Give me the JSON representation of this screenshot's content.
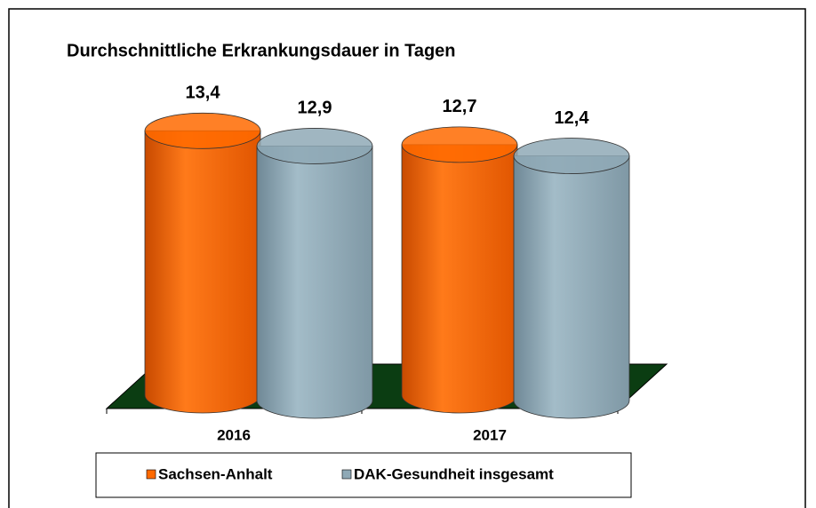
{
  "chart_data": {
    "type": "bar",
    "title": "Durchschnittliche Erkrankungsdauer in Tagen",
    "categories": [
      "2016",
      "2017"
    ],
    "series": [
      {
        "name": "Sachsen-Anhalt",
        "color": "#ff6a00",
        "values": [
          13.4,
          12.7
        ],
        "value_labels": [
          "13,4",
          "12,7"
        ]
      },
      {
        "name": "DAK-Gesundheit insgesamt",
        "color": "#8fa9b6",
        "values": [
          12.9,
          12.4
        ],
        "value_labels": [
          "12,9",
          "12,4"
        ]
      }
    ],
    "ylim": [
      0,
      14
    ],
    "legend": "bottom"
  }
}
